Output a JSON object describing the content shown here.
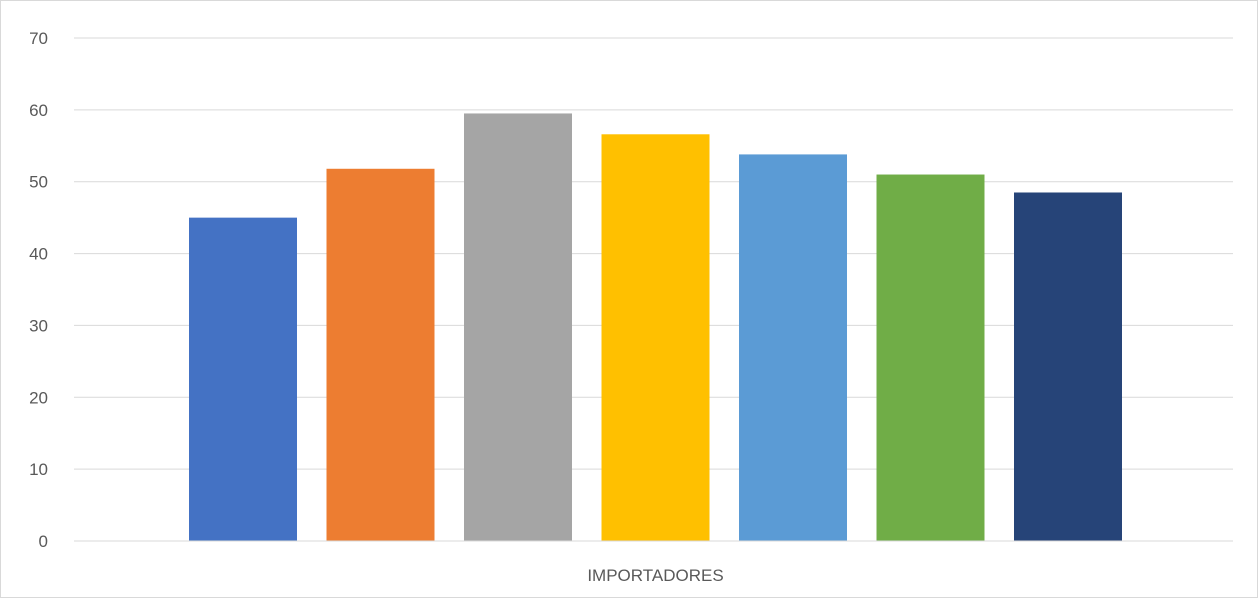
{
  "chart_data": {
    "type": "bar",
    "categories": [
      "IMPORTADORES"
    ],
    "series": [
      {
        "values": [
          45
        ],
        "color": "#4472C4"
      },
      {
        "values": [
          51.8
        ],
        "color": "#ED7D31"
      },
      {
        "values": [
          59.5
        ],
        "color": "#A5A5A5"
      },
      {
        "values": [
          56.6
        ],
        "color": "#FFC000"
      },
      {
        "values": [
          53.8
        ],
        "color": "#5B9BD5"
      },
      {
        "values": [
          51
        ],
        "color": "#70AD47"
      },
      {
        "values": [
          48.5
        ],
        "color": "#264478"
      }
    ],
    "title": "",
    "xlabel": "",
    "ylabel": "",
    "ylim": [
      0,
      70
    ],
    "yticks": [
      0,
      10,
      20,
      30,
      40,
      50,
      60,
      70
    ],
    "grid": true,
    "legend": "none"
  }
}
